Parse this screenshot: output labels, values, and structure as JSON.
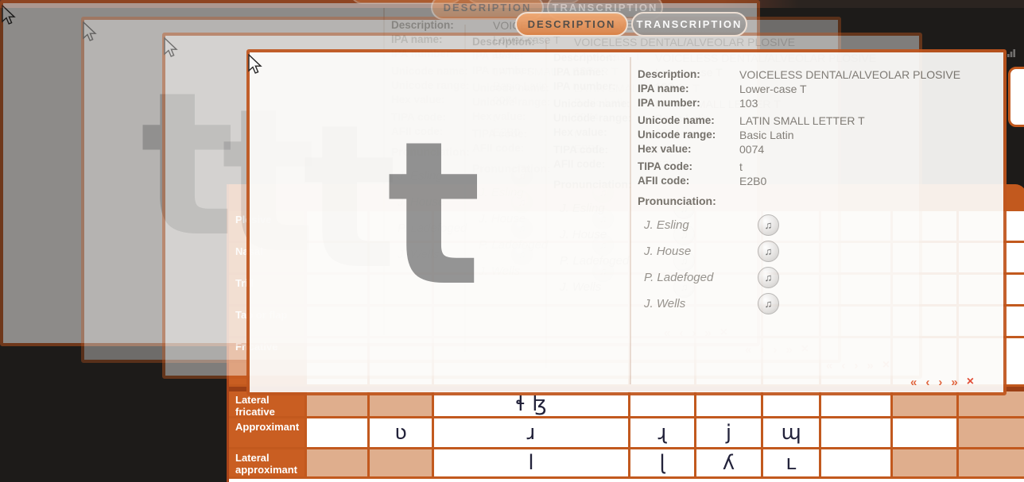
{
  "tabs": {
    "description": "DESCRIPTION",
    "transcription": "TRANSCRIPTION"
  },
  "popup": {
    "letter": "t",
    "fields": [
      {
        "label": "Description:",
        "value": "VOICELESS DENTAL/ALVEOLAR PLOSIVE",
        "group": "start"
      },
      {
        "label": "IPA name:",
        "value": "Lower-case T"
      },
      {
        "label": "IPA number:",
        "value": "103"
      },
      {
        "label": "Unicode name:",
        "value": "LATIN SMALL LETTER T",
        "group": "start"
      },
      {
        "label": "Unicode range:",
        "value": "Basic Latin"
      },
      {
        "label": "Hex value:",
        "value": "0074"
      },
      {
        "label": "TIPA code:",
        "value": "t",
        "group": "start"
      },
      {
        "label": "AFII code:",
        "value": "E2B0"
      }
    ],
    "pronunciation_label": "Pronunciation:",
    "speakers": [
      "J. Esling",
      "J. House",
      "P. Ladefoged",
      "J. Wells"
    ],
    "audio_icon": "♫",
    "nav": {
      "first": "«",
      "prev": "‹",
      "next": "›",
      "last": "»",
      "close": "×"
    }
  },
  "table": {
    "rows": [
      {
        "label": "Plosive",
        "cells": [
          "e",
          "e",
          "e",
          "e",
          "e",
          "e",
          "e",
          "e",
          "e"
        ]
      },
      {
        "label": "Nasal",
        "cells": [
          "e",
          "e",
          "e",
          "e",
          "e",
          "e",
          "e",
          "e",
          "e"
        ]
      },
      {
        "label": "Trill",
        "cells": [
          "e",
          "e",
          "e",
          "e",
          "e",
          "e",
          "e",
          "e",
          "e"
        ]
      },
      {
        "label": "Tap or flap",
        "cells": [
          "e",
          "e",
          "e",
          "e",
          "e",
          "e",
          "e",
          "e",
          "e"
        ]
      },
      {
        "label": "Fricative",
        "cells": [
          "e",
          "e",
          "e",
          "e",
          "e",
          "e",
          "e",
          "e",
          "e"
        ]
      },
      {
        "label": "Lateral fricative",
        "cells": [
          "s",
          "s",
          "ɬ ɮ",
          "e",
          "e",
          "e",
          "e",
          "s",
          "s"
        ]
      },
      {
        "label": "Approximant",
        "cells": [
          "e",
          "ʋ",
          "ɹ",
          "ɻ",
          "j",
          "ɰ",
          "e",
          "e",
          "s"
        ]
      },
      {
        "label": "Lateral approximant",
        "cells": [
          "s",
          "s",
          "l",
          "ɭ",
          "ʎ",
          "ʟ",
          "e",
          "s",
          "s"
        ]
      }
    ]
  },
  "colors": {
    "table_border": "#c2591e",
    "shaded_cell": "#dfae8d",
    "label_cell": "#c95e22",
    "panel_border": "#c0561e",
    "active_tab": "#e89258",
    "nav_arrow": "#df5b31",
    "close": "#e04128"
  }
}
